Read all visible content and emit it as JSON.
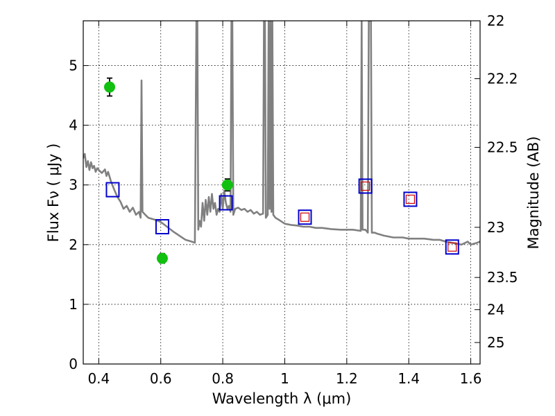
{
  "chart_data": {
    "type": "scatter",
    "xlabel": "Wavelength  λ (μm)",
    "ylabel": "Flux  Fν  ( μJy )",
    "ylabel_right": "Magnitude (AB)",
    "xlim": [
      0.35,
      1.63
    ],
    "ylim": [
      0,
      5.75
    ],
    "grid": true,
    "x_ticks": [
      0.4,
      0.6,
      0.8,
      1.0,
      1.2,
      1.4,
      1.6
    ],
    "x_tick_labels": [
      "0.4",
      "0.6",
      "0.8",
      "1",
      "1.2",
      "1.4",
      "1.6"
    ],
    "y_ticks": [
      0,
      1,
      2,
      3,
      4,
      5
    ],
    "y_tick_labels": [
      "0",
      "1",
      "2",
      "3",
      "4",
      "5"
    ],
    "right_ticks": [
      {
        "label": "22",
        "flux": 5.75
      },
      {
        "label": "22.2",
        "flux": 4.78
      },
      {
        "label": "22.5",
        "flux": 3.63
      },
      {
        "label": "23",
        "flux": 2.29
      },
      {
        "label": "23.5",
        "flux": 1.45
      },
      {
        "label": "24",
        "flux": 0.91
      },
      {
        "label": "25",
        "flux": 0.36
      }
    ],
    "series": [
      {
        "kind": "spectrum",
        "color": "#808080",
        "points": [
          [
            0.35,
            3.45
          ],
          [
            0.355,
            3.52
          ],
          [
            0.36,
            3.3
          ],
          [
            0.365,
            3.4
          ],
          [
            0.37,
            3.25
          ],
          [
            0.375,
            3.38
          ],
          [
            0.38,
            3.28
          ],
          [
            0.385,
            3.32
          ],
          [
            0.39,
            3.22
          ],
          [
            0.395,
            3.28
          ],
          [
            0.4,
            3.25
          ],
          [
            0.41,
            3.2
          ],
          [
            0.42,
            3.26
          ],
          [
            0.425,
            3.15
          ],
          [
            0.43,
            3.22
          ],
          [
            0.44,
            3.05
          ],
          [
            0.45,
            2.92
          ],
          [
            0.46,
            2.8
          ],
          [
            0.47,
            2.72
          ],
          [
            0.48,
            2.6
          ],
          [
            0.49,
            2.65
          ],
          [
            0.5,
            2.55
          ],
          [
            0.51,
            2.62
          ],
          [
            0.52,
            2.5
          ],
          [
            0.53,
            2.55
          ],
          [
            0.535,
            2.45
          ],
          [
            0.538,
            4.75
          ],
          [
            0.541,
            2.55
          ],
          [
            0.55,
            2.5
          ],
          [
            0.56,
            2.45
          ],
          [
            0.58,
            2.42
          ],
          [
            0.6,
            2.38
          ],
          [
            0.62,
            2.3
          ],
          [
            0.64,
            2.22
          ],
          [
            0.66,
            2.15
          ],
          [
            0.68,
            2.08
          ],
          [
            0.7,
            2.05
          ],
          [
            0.71,
            2.03
          ],
          [
            0.715,
            5.75
          ],
          [
            0.718,
            5.75
          ],
          [
            0.721,
            2.25
          ],
          [
            0.725,
            2.4
          ],
          [
            0.73,
            2.3
          ],
          [
            0.735,
            2.7
          ],
          [
            0.74,
            2.4
          ],
          [
            0.745,
            2.75
          ],
          [
            0.75,
            2.5
          ],
          [
            0.755,
            2.8
          ],
          [
            0.76,
            2.55
          ],
          [
            0.765,
            2.85
          ],
          [
            0.77,
            2.6
          ],
          [
            0.775,
            2.7
          ],
          [
            0.78,
            2.5
          ],
          [
            0.785,
            2.6
          ],
          [
            0.79,
            2.55
          ],
          [
            0.795,
            2.85
          ],
          [
            0.8,
            2.6
          ],
          [
            0.805,
            2.9
          ],
          [
            0.81,
            2.7
          ],
          [
            0.815,
            2.6
          ],
          [
            0.82,
            2.65
          ],
          [
            0.825,
            2.55
          ],
          [
            0.828,
            5.75
          ],
          [
            0.831,
            5.75
          ],
          [
            0.834,
            2.5
          ],
          [
            0.84,
            2.6
          ],
          [
            0.85,
            2.62
          ],
          [
            0.86,
            2.58
          ],
          [
            0.87,
            2.6
          ],
          [
            0.88,
            2.55
          ],
          [
            0.89,
            2.58
          ],
          [
            0.9,
            2.52
          ],
          [
            0.91,
            2.55
          ],
          [
            0.92,
            2.5
          ],
          [
            0.93,
            2.52
          ],
          [
            0.933,
            5.75
          ],
          [
            0.936,
            5.75
          ],
          [
            0.939,
            2.45
          ],
          [
            0.945,
            2.5
          ],
          [
            0.948,
            5.75
          ],
          [
            0.951,
            2.6
          ],
          [
            0.954,
            5.75
          ],
          [
            0.957,
            2.55
          ],
          [
            0.96,
            5.75
          ],
          [
            0.963,
            2.5
          ],
          [
            0.97,
            2.45
          ],
          [
            0.98,
            2.42
          ],
          [
            1.0,
            2.35
          ],
          [
            1.02,
            2.33
          ],
          [
            1.04,
            2.32
          ],
          [
            1.06,
            2.3
          ],
          [
            1.08,
            2.3
          ],
          [
            1.1,
            2.28
          ],
          [
            1.12,
            2.28
          ],
          [
            1.15,
            2.26
          ],
          [
            1.18,
            2.25
          ],
          [
            1.2,
            2.25
          ],
          [
            1.22,
            2.25
          ],
          [
            1.245,
            2.23
          ],
          [
            1.248,
            5.75
          ],
          [
            1.251,
            2.25
          ],
          [
            1.26,
            2.25
          ],
          [
            1.268,
            2.2
          ],
          [
            1.271,
            5.75
          ],
          [
            1.278,
            5.75
          ],
          [
            1.281,
            2.2
          ],
          [
            1.29,
            2.2
          ],
          [
            1.3,
            2.18
          ],
          [
            1.32,
            2.15
          ],
          [
            1.35,
            2.12
          ],
          [
            1.38,
            2.12
          ],
          [
            1.4,
            2.1
          ],
          [
            1.42,
            2.1
          ],
          [
            1.45,
            2.1
          ],
          [
            1.48,
            2.08
          ],
          [
            1.5,
            2.08
          ],
          [
            1.52,
            2.05
          ],
          [
            1.55,
            2.02
          ],
          [
            1.57,
            2.0
          ],
          [
            1.59,
            2.05
          ],
          [
            1.6,
            2.0
          ],
          [
            1.62,
            2.03
          ],
          [
            1.63,
            2.05
          ]
        ]
      },
      {
        "kind": "observed",
        "color": "#11c011",
        "points": [
          {
            "x": 0.435,
            "y": 4.64,
            "err": 0.15
          },
          {
            "x": 0.605,
            "y": 1.77,
            "err": 0.08
          },
          {
            "x": 0.815,
            "y": 3.0,
            "err": 0.1
          }
        ]
      },
      {
        "kind": "model",
        "color": "#0000cc",
        "points": [
          {
            "x": 0.445,
            "y": 2.92
          },
          {
            "x": 0.605,
            "y": 2.3
          },
          {
            "x": 0.81,
            "y": 2.7
          },
          {
            "x": 1.065,
            "y": 2.46
          },
          {
            "x": 1.26,
            "y": 2.98
          },
          {
            "x": 1.405,
            "y": 2.76
          },
          {
            "x": 1.54,
            "y": 1.96
          }
        ]
      },
      {
        "kind": "model-small",
        "color": "#cc0000",
        "points": [
          {
            "x": 1.065,
            "y": 2.46
          },
          {
            "x": 1.26,
            "y": 2.98
          },
          {
            "x": 1.405,
            "y": 2.76
          },
          {
            "x": 1.54,
            "y": 1.96
          }
        ]
      }
    ]
  }
}
